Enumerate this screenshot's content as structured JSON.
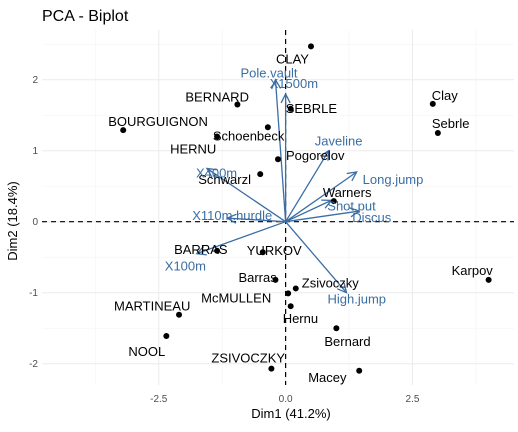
{
  "chart_data": {
    "type": "scatter",
    "title": "PCA - Biplot",
    "xlabel": "Dim1 (41.2%)",
    "ylabel": "Dim2 (18.4%)",
    "xlim": [
      -4.8,
      4.5
    ],
    "ylim": [
      -2.3,
      2.7
    ],
    "x_ticks": [
      -2.5,
      0.0,
      2.5
    ],
    "y_ticks": [
      -2,
      -1,
      0,
      1,
      2
    ],
    "x_tick_labels": [
      "-2.5",
      "0.0",
      "2.5"
    ],
    "y_tick_labels": [
      "-2",
      "-1",
      "0",
      "1",
      "2"
    ],
    "grid": true,
    "reference_lines": {
      "x": 0,
      "y": 0,
      "style": "dashed"
    },
    "colors": {
      "points": "#000000",
      "variables": "#3a6ea5"
    },
    "individuals": [
      {
        "name": "CLAY",
        "x": 0.5,
        "y": 2.47
      },
      {
        "name": "BERNARD",
        "x": -0.95,
        "y": 1.65
      },
      {
        "name": "SEBRLE",
        "x": 0.1,
        "y": 1.59
      },
      {
        "name": "BOURGUIGNON",
        "x": -3.2,
        "y": 1.29
      },
      {
        "name": "Schoenbeck",
        "x": -0.35,
        "y": 1.33
      },
      {
        "name": "HERNU",
        "x": -1.35,
        "y": 1.2
      },
      {
        "name": "Pogorelov",
        "x": -0.15,
        "y": 0.88
      },
      {
        "name": "Schwarzl",
        "x": -0.5,
        "y": 0.67
      },
      {
        "name": "Clay",
        "x": 2.9,
        "y": 1.66
      },
      {
        "name": "Sebrle",
        "x": 3.0,
        "y": 1.25
      },
      {
        "name": "Warners",
        "x": 0.95,
        "y": 0.29
      },
      {
        "name": "BARRAS",
        "x": -1.35,
        "y": -0.41
      },
      {
        "name": "YURKOV",
        "x": -0.45,
        "y": -0.43
      },
      {
        "name": "Barras",
        "x": -0.2,
        "y": -0.82
      },
      {
        "name": "Zsivoczky",
        "x": 0.2,
        "y": -0.94
      },
      {
        "name": "McMULLEN",
        "x": 0.05,
        "y": -1.01
      },
      {
        "name": "Hernu",
        "x": 0.1,
        "y": -1.19
      },
      {
        "name": "Karpov",
        "x": 4.0,
        "y": -0.82
      },
      {
        "name": "MARTINEAU",
        "x": -2.1,
        "y": -1.31
      },
      {
        "name": "NOOL",
        "x": -2.35,
        "y": -1.61
      },
      {
        "name": "Bernard",
        "x": 1.0,
        "y": -1.5
      },
      {
        "name": "ZSIVOCZKY",
        "x": -0.28,
        "y": -2.07
      },
      {
        "name": "Macey",
        "x": 1.45,
        "y": -2.1
      }
    ],
    "variables": [
      {
        "name": "Pole.vault",
        "x": -0.2,
        "y": 2.0
      },
      {
        "name": "X1500m",
        "x": 0.0,
        "y": 1.8
      },
      {
        "name": "Javeline",
        "x": 0.85,
        "y": 1.0
      },
      {
        "name": "X400m",
        "x": -1.55,
        "y": 0.75
      },
      {
        "name": "Shot.put",
        "x": 0.9,
        "y": 0.3
      },
      {
        "name": "Long.jump",
        "x": 1.4,
        "y": 0.7
      },
      {
        "name": "Discus",
        "x": 1.45,
        "y": 0.15
      },
      {
        "name": "X110m.hurdle",
        "x": -1.15,
        "y": 0.05
      },
      {
        "name": "X100m",
        "x": -1.75,
        "y": -0.45
      },
      {
        "name": "High.jump",
        "x": 1.2,
        "y": -1.0
      }
    ]
  }
}
